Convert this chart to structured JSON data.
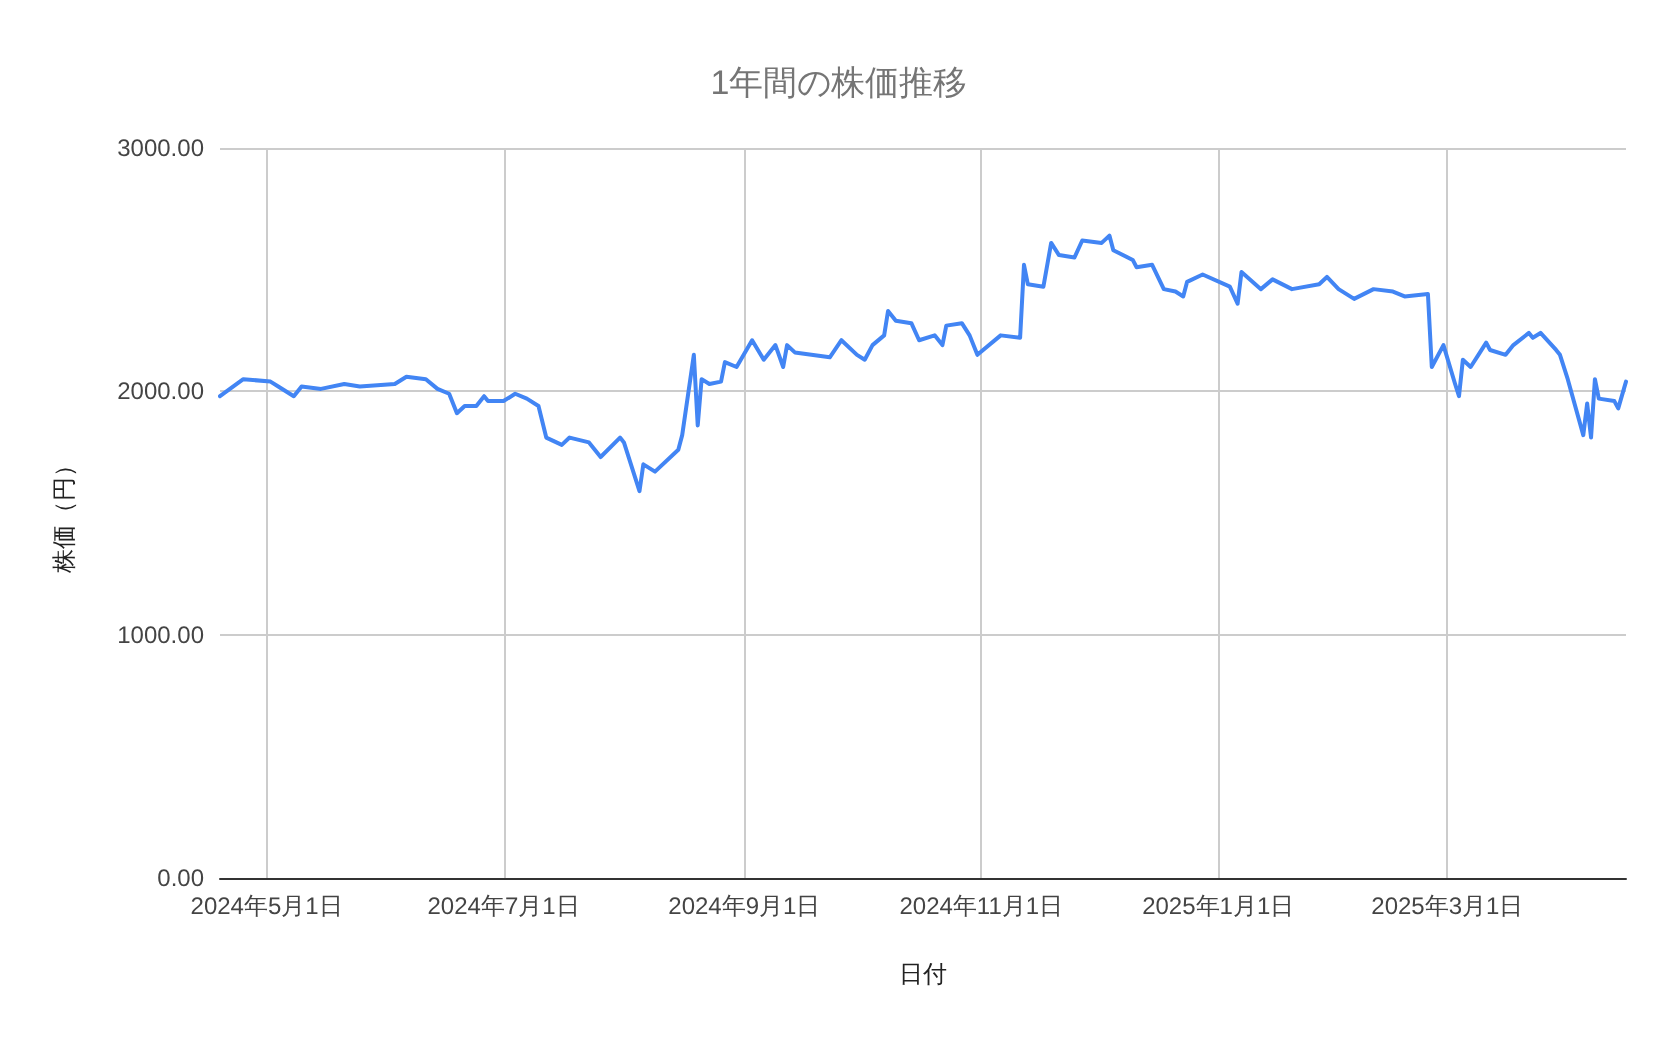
{
  "chart_data": {
    "type": "line",
    "title": "1年間の株価推移",
    "xlabel": "日付",
    "ylabel": "株価（円）",
    "x": [
      "2024-04-19",
      "2024-04-25",
      "2024-05-02",
      "2024-05-04",
      "2024-05-08",
      "2024-05-10",
      "2024-05-15",
      "2024-05-21",
      "2024-05-25",
      "2024-06-03",
      "2024-06-06",
      "2024-06-11",
      "2024-06-14",
      "2024-06-17",
      "2024-06-19",
      "2024-06-21",
      "2024-06-24",
      "2024-06-26",
      "2024-06-27",
      "2024-07-01",
      "2024-07-04",
      "2024-07-07",
      "2024-07-10",
      "2024-07-12",
      "2024-07-16",
      "2024-07-18",
      "2024-07-23",
      "2024-07-26",
      "2024-07-31",
      "2024-08-01",
      "2024-08-05",
      "2024-08-06",
      "2024-08-09",
      "2024-08-15",
      "2024-08-16",
      "2024-08-19",
      "2024-08-20",
      "2024-08-21",
      "2024-08-23",
      "2024-08-26",
      "2024-08-27",
      "2024-08-30",
      "2024-09-03",
      "2024-09-06",
      "2024-09-09",
      "2024-09-11",
      "2024-09-12",
      "2024-09-14",
      "2024-09-23",
      "2024-09-26",
      "2024-09-30",
      "2024-10-02",
      "2024-10-04",
      "2024-10-07",
      "2024-10-08",
      "2024-10-10",
      "2024-10-14",
      "2024-10-16",
      "2024-10-20",
      "2024-10-22",
      "2024-10-23",
      "2024-10-27",
      "2024-10-29",
      "2024-10-31",
      "2024-11-06",
      "2024-11-11",
      "2024-11-12",
      "2024-11-13",
      "2024-11-17",
      "2024-11-19",
      "2024-11-21",
      "2024-11-25",
      "2024-11-27",
      "2024-12-02",
      "2024-12-04",
      "2024-12-05",
      "2024-12-10",
      "2024-12-11",
      "2024-12-15",
      "2024-12-18",
      "2024-12-21",
      "2024-12-23",
      "2024-12-24",
      "2024-12-28",
      "2025-01-04",
      "2025-01-06",
      "2025-01-07",
      "2025-01-12",
      "2025-01-15",
      "2025-01-20",
      "2025-01-27",
      "2025-01-29",
      "2025-02-01",
      "2025-02-05",
      "2025-02-10",
      "2025-02-15",
      "2025-02-18",
      "2025-02-24",
      "2025-02-25",
      "2025-02-28",
      "2025-03-03",
      "2025-03-04",
      "2025-03-05",
      "2025-03-07",
      "2025-03-09",
      "2025-03-11",
      "2025-03-12",
      "2025-03-16",
      "2025-03-18",
      "2025-03-22",
      "2025-03-23",
      "2025-03-25",
      "2025-03-29",
      "2025-03-30",
      "2025-04-01",
      "2025-04-05",
      "2025-04-06",
      "2025-04-07",
      "2025-04-08",
      "2025-04-09",
      "2025-04-13",
      "2025-04-14",
      "2025-04-16"
    ],
    "series": [
      {
        "color": "#4285f4",
        "values": [
          1980,
          2050,
          2040,
          2020,
          1980,
          2020,
          2010,
          2030,
          2020,
          2030,
          2060,
          2050,
          2010,
          1990,
          1910,
          1940,
          1940,
          1980,
          1960,
          1960,
          1990,
          1970,
          1940,
          1810,
          1780,
          1810,
          1790,
          1730,
          1810,
          1790,
          1590,
          1700,
          1670,
          1760,
          1820,
          2150,
          1860,
          2050,
          2030,
          2040,
          2120,
          2100,
          2210,
          2130,
          2190,
          2100,
          2190,
          2160,
          2140,
          2210,
          2150,
          2130,
          2190,
          2230,
          2330,
          2290,
          2280,
          2210,
          2230,
          2190,
          2270,
          2280,
          2230,
          2150,
          2230,
          2220,
          2520,
          2440,
          2430,
          2610,
          2560,
          2550,
          2620,
          2610,
          2640,
          2580,
          2540,
          2510,
          2520,
          2420,
          2410,
          2390,
          2450,
          2480,
          2430,
          2360,
          2490,
          2420,
          2460,
          2420,
          2440,
          2470,
          2420,
          2380,
          2420,
          2410,
          2390,
          2400,
          2100,
          2190,
          2030,
          1980,
          2130,
          2100,
          2150,
          2200,
          2170,
          2150,
          2190,
          2240,
          2220,
          2240,
          2170,
          2150,
          2050,
          1820,
          1950,
          1810,
          2050,
          1970,
          1960,
          1930,
          2040
        ]
      }
    ],
    "xlim": [
      "2024-04-19",
      "2025-04-16"
    ],
    "xticks": [
      {
        "value": "2024-05-01",
        "label": "2024年5月1日"
      },
      {
        "value": "2024-07-01",
        "label": "2024年7月1日"
      },
      {
        "value": "2024-09-01",
        "label": "2024年9月1日"
      },
      {
        "value": "2024-11-01",
        "label": "2024年11月1日"
      },
      {
        "value": "2025-01-01",
        "label": "2025年1月1日"
      },
      {
        "value": "2025-03-01",
        "label": "2025年3月1日"
      }
    ],
    "ylim": [
      0,
      3000
    ],
    "yticks": [
      {
        "value": 0,
        "label": "0.00"
      },
      {
        "value": 1000,
        "label": "1000.00"
      },
      {
        "value": 2000,
        "label": "2000.00"
      },
      {
        "value": 3000,
        "label": "3000.00"
      }
    ],
    "grid": true,
    "marker": "none",
    "line_style": "solid"
  }
}
